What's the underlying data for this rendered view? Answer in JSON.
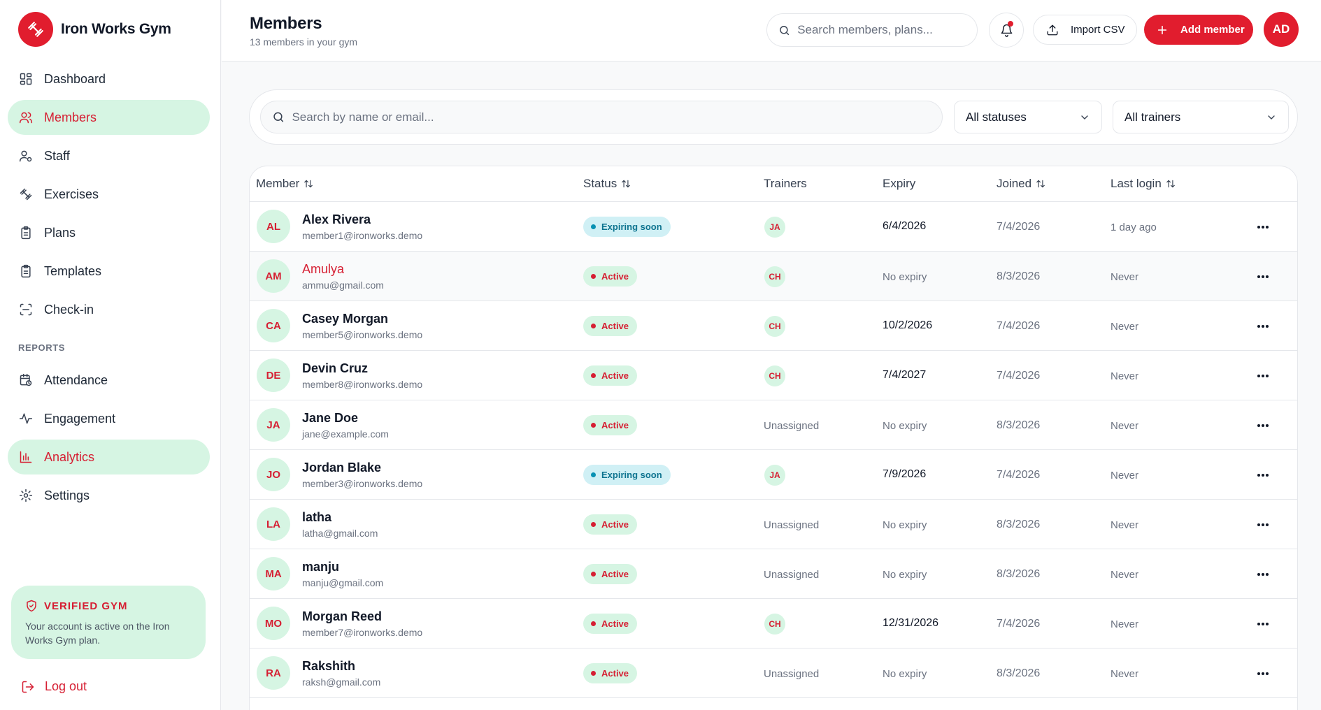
{
  "brand": {
    "name": "Iron Works Gym",
    "icon": "dumbbell-icon",
    "accent_color": "#e11d2e",
    "mint_color": "#d6f5e3"
  },
  "sidebar": {
    "items": [
      {
        "label": "Dashboard",
        "icon": "dashboard-icon"
      },
      {
        "label": "Members",
        "icon": "users-icon",
        "active": true
      },
      {
        "label": "Staff",
        "icon": "user-cog-icon"
      },
      {
        "label": "Exercises",
        "icon": "dumbbell-icon"
      },
      {
        "label": "Plans",
        "icon": "clipboard-icon"
      },
      {
        "label": "Templates",
        "icon": "clipboard-icon"
      },
      {
        "label": "Check-in",
        "icon": "scan-icon"
      }
    ],
    "section_label": "REPORTS",
    "report_items": [
      {
        "label": "Attendance",
        "icon": "calendar-clock-icon"
      },
      {
        "label": "Engagement",
        "icon": "activity-icon"
      },
      {
        "label": "Analytics",
        "icon": "bar-chart-icon",
        "highlighted": true
      },
      {
        "label": "Settings",
        "icon": "gear-icon"
      }
    ],
    "verified": {
      "title": "VERIFIED GYM",
      "text": "Your account is active on the Iron Works Gym plan."
    },
    "logout_label": "Log out"
  },
  "header": {
    "title": "Members",
    "subtitle": "13 members in your gym",
    "search_placeholder": "Search members, plans...",
    "import_label": "Import CSV",
    "add_label": "Add member",
    "avatar_initials": "AD"
  },
  "filters": {
    "search_placeholder": "Search by name or email...",
    "status_value": "All statuses",
    "trainer_value": "All trainers"
  },
  "table": {
    "columns": {
      "member": "Member",
      "status": "Status",
      "trainers": "Trainers",
      "expiry": "Expiry",
      "joined": "Joined",
      "last_login": "Last login"
    },
    "rows": [
      {
        "initials": "AL",
        "name": "Alex Rivera",
        "email": "member1@ironworks.demo",
        "status": "Expiring soon",
        "status_type": "expiring",
        "trainer": "JA",
        "expiry": "6/4/2026",
        "joined": "7/4/2026",
        "last_login": "1 day ago"
      },
      {
        "initials": "AM",
        "name": "Amulya",
        "email": "ammu@gmail.com",
        "status": "Active",
        "status_type": "active",
        "trainer": "CH",
        "expiry": "No expiry",
        "joined": "8/3/2026",
        "last_login": "Never",
        "hover": true
      },
      {
        "initials": "CA",
        "name": "Casey Morgan",
        "email": "member5@ironworks.demo",
        "status": "Active",
        "status_type": "active",
        "trainer": "CH",
        "expiry": "10/2/2026",
        "joined": "7/4/2026",
        "last_login": "Never"
      },
      {
        "initials": "DE",
        "name": "Devin Cruz",
        "email": "member8@ironworks.demo",
        "status": "Active",
        "status_type": "active",
        "trainer": "CH",
        "expiry": "7/4/2027",
        "joined": "7/4/2026",
        "last_login": "Never"
      },
      {
        "initials": "JA",
        "name": "Jane Doe",
        "email": "jane@example.com",
        "status": "Active",
        "status_type": "active",
        "trainer": "Unassigned",
        "expiry": "No expiry",
        "joined": "8/3/2026",
        "last_login": "Never"
      },
      {
        "initials": "JO",
        "name": "Jordan Blake",
        "email": "member3@ironworks.demo",
        "status": "Expiring soon",
        "status_type": "expiring",
        "trainer": "JA",
        "expiry": "7/9/2026",
        "joined": "7/4/2026",
        "last_login": "Never"
      },
      {
        "initials": "LA",
        "name": "latha",
        "email": "latha@gmail.com",
        "status": "Active",
        "status_type": "active",
        "trainer": "Unassigned",
        "expiry": "No expiry",
        "joined": "8/3/2026",
        "last_login": "Never"
      },
      {
        "initials": "MA",
        "name": "manju",
        "email": "manju@gmail.com",
        "status": "Active",
        "status_type": "active",
        "trainer": "Unassigned",
        "expiry": "No expiry",
        "joined": "8/3/2026",
        "last_login": "Never"
      },
      {
        "initials": "MO",
        "name": "Morgan Reed",
        "email": "member7@ironworks.demo",
        "status": "Active",
        "status_type": "active",
        "trainer": "CH",
        "expiry": "12/31/2026",
        "joined": "7/4/2026",
        "last_login": "Never"
      },
      {
        "initials": "RA",
        "name": "Rakshith",
        "email": "raksh@gmail.com",
        "status": "Active",
        "status_type": "active",
        "trainer": "Unassigned",
        "expiry": "No expiry",
        "joined": "8/3/2026",
        "last_login": "Never"
      }
    ]
  }
}
